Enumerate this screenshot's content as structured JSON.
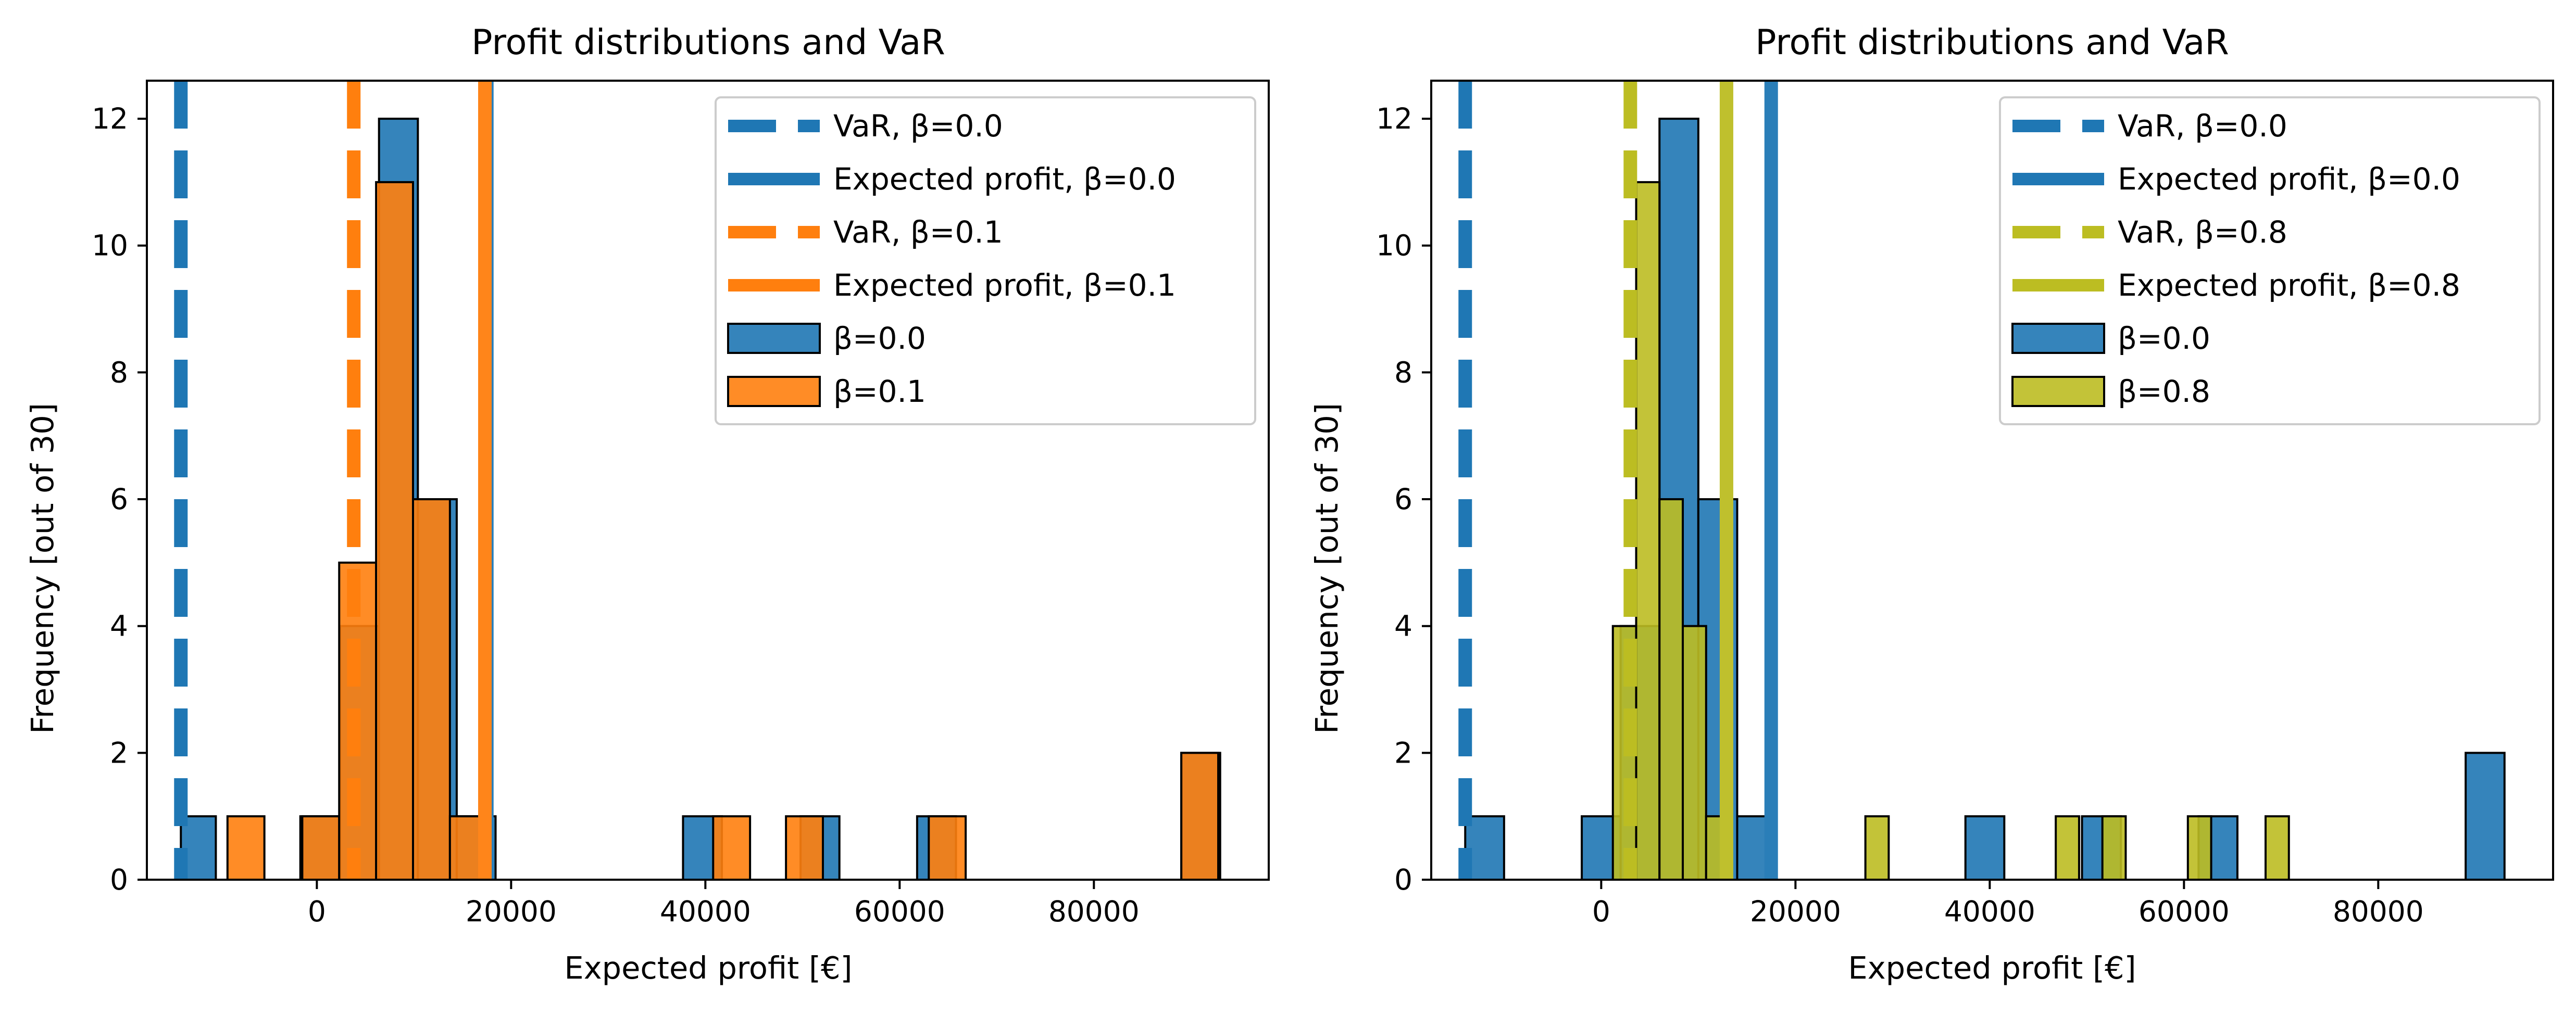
{
  "chart_data": [
    {
      "type": "bar",
      "title": "Profit distributions and VaR",
      "xlabel": "Expected profit [€]",
      "ylabel": "Frequency [out of 30]",
      "xlim": [
        -17500,
        98000
      ],
      "ylim": [
        0,
        12.6
      ],
      "xticks": [
        0,
        20000,
        40000,
        60000,
        80000
      ],
      "yticks": [
        0,
        2,
        4,
        6,
        8,
        10,
        12
      ],
      "legend_location": "top-right",
      "legend": [
        {
          "label": "VaR, β=0.0",
          "kind": "dashed-line",
          "color": "#1f77b4"
        },
        {
          "label": "Expected profit, β=0.0",
          "kind": "solid-line",
          "color": "#1f77b4"
        },
        {
          "label": "VaR, β=0.1",
          "kind": "dashed-line",
          "color": "#ff7f0e"
        },
        {
          "label": "Expected profit, β=0.1",
          "kind": "solid-line",
          "color": "#ff7f0e"
        },
        {
          "label": "β=0.0",
          "kind": "patch",
          "color": "#1f77b4"
        },
        {
          "label": "β=0.1",
          "kind": "patch",
          "color": "#ff7f0e"
        }
      ],
      "vlines": [
        {
          "label": "VaR, β=0.0",
          "x": -14000,
          "style": "dashed",
          "color": "#1f77b4"
        },
        {
          "label": "Expected profit, β=0.0",
          "x": 17500,
          "style": "solid",
          "color": "#1f77b4"
        },
        {
          "label": "VaR, β=0.1",
          "x": 3800,
          "style": "dashed",
          "color": "#ff7f0e"
        },
        {
          "label": "Expected profit, β=0.1",
          "x": 17300,
          "style": "solid",
          "color": "#ff7f0e"
        }
      ],
      "series": [
        {
          "name": "β=0.0",
          "color": "#1f77b4",
          "bins": [
            {
              "x0": -14000,
              "x1": -10400,
              "count": 1
            },
            {
              "x0": -1700,
              "x1": 2400,
              "count": 1
            },
            {
              "x0": 2400,
              "x1": 6400,
              "count": 4
            },
            {
              "x0": 6400,
              "x1": 10400,
              "count": 12
            },
            {
              "x0": 10400,
              "x1": 14400,
              "count": 6
            },
            {
              "x0": 14400,
              "x1": 18400,
              "count": 1
            },
            {
              "x0": 37700,
              "x1": 41700,
              "count": 1
            },
            {
              "x0": 49800,
              "x1": 53800,
              "count": 1
            },
            {
              "x0": 61800,
              "x1": 65800,
              "count": 1
            },
            {
              "x0": 89000,
              "x1": 93000,
              "count": 2
            }
          ]
        },
        {
          "name": "β=0.1",
          "color": "#ff7f0e",
          "bins": [
            {
              "x0": -9200,
              "x1": -5400,
              "count": 1
            },
            {
              "x0": -1500,
              "x1": 2300,
              "count": 1
            },
            {
              "x0": 2300,
              "x1": 6100,
              "count": 5
            },
            {
              "x0": 6100,
              "x1": 9900,
              "count": 11
            },
            {
              "x0": 9900,
              "x1": 13700,
              "count": 6
            },
            {
              "x0": 13700,
              "x1": 17500,
              "count": 1
            },
            {
              "x0": 40800,
              "x1": 44600,
              "count": 1
            },
            {
              "x0": 48300,
              "x1": 52100,
              "count": 1
            },
            {
              "x0": 63000,
              "x1": 66800,
              "count": 1
            },
            {
              "x0": 89000,
              "x1": 92800,
              "count": 2
            }
          ]
        }
      ]
    },
    {
      "type": "bar",
      "title": "Profit distributions and VaR",
      "xlabel": "Expected profit [€]",
      "ylabel": "Frequency [out of 30]",
      "xlim": [
        -17500,
        98000
      ],
      "ylim": [
        0,
        12.6
      ],
      "xticks": [
        0,
        20000,
        40000,
        60000,
        80000
      ],
      "yticks": [
        0,
        2,
        4,
        6,
        8,
        10,
        12
      ],
      "legend_location": "top-right",
      "legend": [
        {
          "label": "VaR, β=0.0",
          "kind": "dashed-line",
          "color": "#1f77b4"
        },
        {
          "label": "Expected profit, β=0.0",
          "kind": "solid-line",
          "color": "#1f77b4"
        },
        {
          "label": "VaR, β=0.8",
          "kind": "dashed-line",
          "color": "#bcbd22"
        },
        {
          "label": "Expected profit, β=0.8",
          "kind": "solid-line",
          "color": "#bcbd22"
        },
        {
          "label": "β=0.0",
          "kind": "patch",
          "color": "#1f77b4"
        },
        {
          "label": "β=0.8",
          "kind": "patch",
          "color": "#bcbd22"
        }
      ],
      "vlines": [
        {
          "label": "VaR, β=0.0",
          "x": -14000,
          "style": "dashed",
          "color": "#1f77b4"
        },
        {
          "label": "Expected profit, β=0.0",
          "x": 17500,
          "style": "solid",
          "color": "#1f77b4"
        },
        {
          "label": "VaR, β=0.8",
          "x": 3000,
          "style": "dashed",
          "color": "#bcbd22"
        },
        {
          "label": "Expected profit, β=0.8",
          "x": 12900,
          "style": "solid",
          "color": "#bcbd22"
        }
      ],
      "series": [
        {
          "name": "β=0.0",
          "color": "#1f77b4",
          "bins": [
            {
              "x0": -14000,
              "x1": -10000,
              "count": 1
            },
            {
              "x0": -2000,
              "x1": 2000,
              "count": 1
            },
            {
              "x0": 2000,
              "x1": 6000,
              "count": 4
            },
            {
              "x0": 6000,
              "x1": 10000,
              "count": 12
            },
            {
              "x0": 10000,
              "x1": 14000,
              "count": 6
            },
            {
              "x0": 14000,
              "x1": 18000,
              "count": 1
            },
            {
              "x0": 37500,
              "x1": 41500,
              "count": 1
            },
            {
              "x0": 49500,
              "x1": 53500,
              "count": 1
            },
            {
              "x0": 61500,
              "x1": 65500,
              "count": 1
            },
            {
              "x0": 89000,
              "x1": 93000,
              "count": 2
            }
          ]
        },
        {
          "name": "β=0.8",
          "color": "#bcbd22",
          "bins": [
            {
              "x0": 1200,
              "x1": 3600,
              "count": 4
            },
            {
              "x0": 3600,
              "x1": 6000,
              "count": 11
            },
            {
              "x0": 6000,
              "x1": 8400,
              "count": 6
            },
            {
              "x0": 8400,
              "x1": 10800,
              "count": 4
            },
            {
              "x0": 10800,
              "x1": 13200,
              "count": 1
            },
            {
              "x0": 27200,
              "x1": 29600,
              "count": 1
            },
            {
              "x0": 46800,
              "x1": 49200,
              "count": 1
            },
            {
              "x0": 51600,
              "x1": 54000,
              "count": 1
            },
            {
              "x0": 60400,
              "x1": 62800,
              "count": 1
            },
            {
              "x0": 68400,
              "x1": 70800,
              "count": 1
            }
          ]
        }
      ]
    }
  ]
}
